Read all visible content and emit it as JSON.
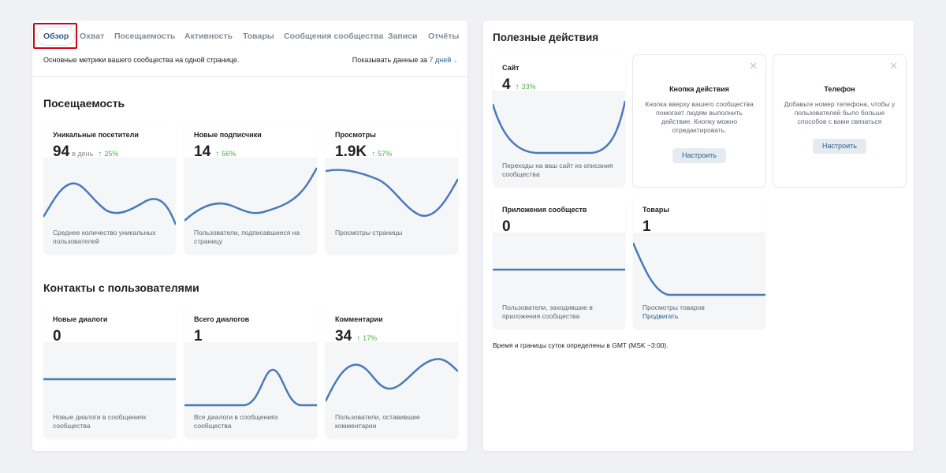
{
  "tabs": [
    {
      "label": "Обзор",
      "active": true
    },
    {
      "label": "Охват"
    },
    {
      "label": "Посещаемость"
    },
    {
      "label": "Активность"
    },
    {
      "label": "Товары"
    },
    {
      "label": "Сообщения сообщества"
    },
    {
      "label": "Записи"
    },
    {
      "label": "Отчёты"
    }
  ],
  "subtitle": "Основные метрики вашего сообщества на одной странице.",
  "period": {
    "prefix": "Показывать данные за",
    "value": "7 дней"
  },
  "sections": {
    "attendance": {
      "title": "Посещаемость",
      "cards": [
        {
          "name": "Уникальные посетители",
          "value": "94",
          "unit": "в день",
          "delta": "25%",
          "description": "Среднее количество уникальных пользователей"
        },
        {
          "name": "Новые подписчики",
          "value": "14",
          "delta": "56%",
          "description": "Пользователи, подписавшиеся на страницу"
        },
        {
          "name": "Просмотры",
          "value": "1.9K",
          "delta": "57%",
          "description": "Просмотры страницы"
        }
      ]
    },
    "contacts": {
      "title": "Контакты с пользователями",
      "cards": [
        {
          "name": "Новые диалоги",
          "value": "0",
          "description": "Новые диалоги в сообщениях сообщества"
        },
        {
          "name": "Всего диалогов",
          "value": "1",
          "description": "Все диалоги в сообщениях сообщества"
        },
        {
          "name": "Комментарии",
          "value": "34",
          "delta": "17%",
          "description": "Пользователи, оставившие комментарии"
        }
      ]
    }
  },
  "useful": {
    "title": "Полезные действия",
    "site": {
      "name": "Сайт",
      "value": "4",
      "delta": "33%",
      "description": "Переходы на ваш сайт из описания сообщества"
    },
    "action_button": {
      "title": "Кнопка действия",
      "text": "Кнопка вверху вашего сообщества помогает людям выполнить действие. Кнопку можно отредактировать.",
      "button": "Настроить"
    },
    "phone": {
      "title": "Телефон",
      "text": "Добавьте номер телефона, чтобы у пользователей было больше способов с вами связаться",
      "button": "Настроить"
    },
    "apps": {
      "name": "Приложения сообществ",
      "value": "0",
      "description": "Пользователи, заходившие в приложения сообщества"
    },
    "goods": {
      "name": "Товары",
      "value": "1",
      "description": "Просмотры товаров",
      "link": "Продвигать"
    },
    "footnote": "Время и границы суток определены в GMT (MSK −3:00)."
  },
  "icons": {
    "delta": "arrow-up-icon",
    "period": "chevron-down-icon",
    "close": "close-icon"
  },
  "colors": {
    "accent": "#2d5e8c",
    "line": "#4a7ab8",
    "positive": "#4bb34b",
    "highlight": "#d0021b"
  }
}
